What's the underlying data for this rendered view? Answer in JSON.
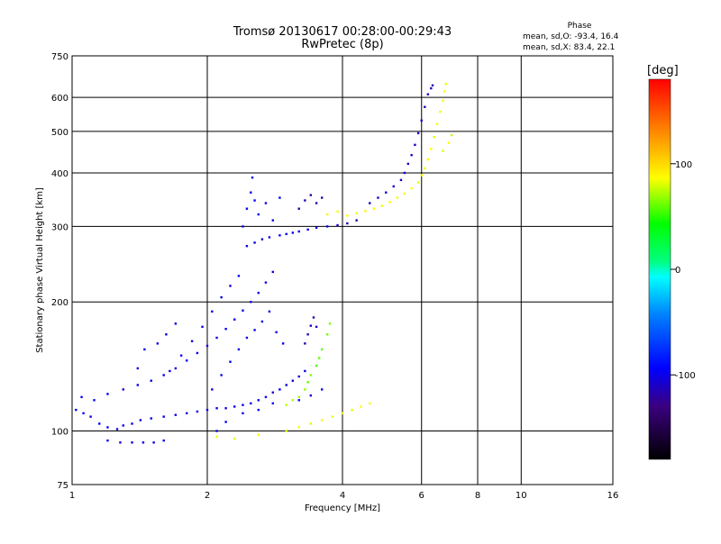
{
  "chart_data": {
    "type": "scatter",
    "title": "Tromsø 20130617 00:28:00-00:29:43",
    "subtitle": "RwPretec (8p)",
    "xlabel": "Frequency [MHz]",
    "ylabel": "Stationary phase Virtual Height [km]",
    "x_scale": "log",
    "y_scale": "log",
    "xlim": [
      1,
      16
    ],
    "ylim": [
      75,
      750
    ],
    "x_ticks": [
      {
        "value": 1,
        "label": "1"
      },
      {
        "value": 2,
        "label": "2"
      },
      {
        "value": 4,
        "label": "4"
      },
      {
        "value": 6,
        "label": "6"
      },
      {
        "value": 8,
        "label": "8"
      },
      {
        "value": 10,
        "label": "10"
      },
      {
        "value": 16,
        "label": "16"
      }
    ],
    "y_ticks": [
      {
        "value": 75,
        "label": "75"
      },
      {
        "value": 100,
        "label": "100"
      },
      {
        "value": 200,
        "label": "200"
      },
      {
        "value": 300,
        "label": "300"
      },
      {
        "value": 400,
        "label": "400"
      },
      {
        "value": 500,
        "label": "500"
      },
      {
        "value": 600,
        "label": "600"
      },
      {
        "value": 750,
        "label": "750"
      }
    ],
    "grid": true,
    "phase_info": {
      "header": "Phase",
      "line_o": "mean, sd,O: -93.4, 16.4",
      "line_x": "mean, sd,X: 83.4, 22.1"
    },
    "colorbar": {
      "label": "[deg]",
      "range": [
        -180,
        180
      ],
      "ticks": [
        {
          "value": 100,
          "label": "100"
        },
        {
          "value": 0,
          "label": "0"
        },
        {
          "value": -100,
          "label": "-100"
        }
      ]
    },
    "series": [
      {
        "mode": "O",
        "points": [
          [
            1.02,
            112,
            -100
          ],
          [
            1.06,
            110,
            -95
          ],
          [
            1.1,
            108,
            -105
          ],
          [
            1.15,
            104,
            -98
          ],
          [
            1.2,
            102,
            -100
          ],
          [
            1.26,
            101,
            -102
          ],
          [
            1.3,
            103,
            -96
          ],
          [
            1.36,
            104,
            -100
          ],
          [
            1.42,
            106,
            -104
          ],
          [
            1.5,
            107,
            -98
          ],
          [
            1.6,
            108,
            -100
          ],
          [
            1.7,
            109,
            -95
          ],
          [
            1.8,
            110,
            -103
          ],
          [
            1.9,
            111,
            -100
          ],
          [
            2.0,
            112,
            -98
          ],
          [
            2.1,
            113,
            -100
          ],
          [
            2.2,
            113,
            -104
          ],
          [
            2.3,
            114,
            -96
          ],
          [
            2.4,
            115,
            -100
          ],
          [
            2.5,
            116,
            -102
          ],
          [
            2.6,
            118,
            -98
          ],
          [
            2.7,
            120,
            -100
          ],
          [
            2.8,
            123,
            -105
          ],
          [
            2.9,
            125,
            -96
          ],
          [
            3.0,
            128,
            -100
          ],
          [
            3.1,
            131,
            -98
          ],
          [
            3.2,
            134,
            -102
          ],
          [
            3.3,
            138,
            -100
          ],
          [
            1.2,
            95,
            -100
          ],
          [
            1.28,
            94,
            -103
          ],
          [
            1.36,
            94,
            -100
          ],
          [
            1.44,
            94,
            -98
          ],
          [
            1.52,
            94,
            -102
          ],
          [
            1.6,
            95,
            -100
          ],
          [
            1.05,
            120,
            -100
          ],
          [
            1.12,
            118,
            -96
          ],
          [
            1.2,
            122,
            -100
          ],
          [
            1.3,
            125,
            -104
          ],
          [
            1.4,
            128,
            -100
          ],
          [
            1.5,
            131,
            -98
          ],
          [
            1.6,
            135,
            -100
          ],
          [
            1.7,
            140,
            -102
          ],
          [
            1.8,
            146,
            -100
          ],
          [
            1.9,
            152,
            -98
          ],
          [
            2.0,
            158,
            -100
          ],
          [
            2.1,
            165,
            -103
          ],
          [
            2.2,
            173,
            -100
          ],
          [
            2.3,
            182,
            -97
          ],
          [
            2.4,
            191,
            -100
          ],
          [
            2.5,
            200,
            -102
          ],
          [
            2.6,
            210,
            -100
          ],
          [
            2.7,
            222,
            -98
          ],
          [
            2.8,
            235,
            -100
          ],
          [
            2.05,
            125,
            -102
          ],
          [
            2.15,
            135,
            -100
          ],
          [
            2.25,
            145,
            -96
          ],
          [
            2.35,
            155,
            -100
          ],
          [
            2.45,
            165,
            -104
          ],
          [
            2.55,
            172,
            -100
          ],
          [
            2.65,
            180,
            -98
          ],
          [
            2.75,
            190,
            -100
          ],
          [
            2.85,
            170,
            -102
          ],
          [
            2.95,
            160,
            -100
          ],
          [
            2.1,
            100,
            -100
          ],
          [
            2.2,
            105,
            -98
          ],
          [
            2.4,
            110,
            -102
          ],
          [
            2.6,
            112,
            -100
          ],
          [
            2.8,
            116,
            -96
          ],
          [
            3.2,
            118,
            -100
          ],
          [
            3.4,
            121,
            -104
          ],
          [
            3.6,
            125,
            -100
          ],
          [
            1.65,
            138,
            -100
          ],
          [
            1.75,
            150,
            -98
          ],
          [
            1.85,
            162,
            -102
          ],
          [
            1.95,
            175,
            -100
          ],
          [
            2.05,
            190,
            -97
          ],
          [
            2.15,
            205,
            -100
          ],
          [
            2.25,
            218,
            -103
          ],
          [
            2.35,
            230,
            -100
          ],
          [
            1.4,
            140,
            -100
          ],
          [
            1.45,
            155,
            -98
          ],
          [
            1.55,
            160,
            -102
          ],
          [
            1.62,
            168,
            -100
          ],
          [
            1.7,
            178,
            -96
          ],
          [
            3.3,
            160,
            -115
          ],
          [
            3.35,
            168,
            -118
          ],
          [
            3.4,
            176,
            -110
          ],
          [
            3.45,
            184,
            -116
          ],
          [
            3.5,
            175,
            -112
          ],
          [
            2.45,
            270,
            -100
          ],
          [
            2.55,
            275,
            -98
          ],
          [
            2.65,
            280,
            -102
          ],
          [
            2.75,
            283,
            -100
          ],
          [
            2.9,
            286,
            -98
          ],
          [
            3.0,
            288,
            -102
          ],
          [
            3.1,
            290,
            -100
          ],
          [
            3.2,
            292,
            -104
          ],
          [
            3.35,
            295,
            -100
          ],
          [
            3.5,
            298,
            -98
          ],
          [
            3.7,
            300,
            -100
          ],
          [
            3.9,
            302,
            -110
          ],
          [
            4.1,
            305,
            -115
          ],
          [
            4.3,
            310,
            -120
          ],
          [
            2.4,
            300,
            -100
          ],
          [
            2.45,
            330,
            -98
          ],
          [
            2.5,
            360,
            -102
          ],
          [
            2.52,
            390,
            -100
          ],
          [
            2.55,
            345,
            -96
          ],
          [
            2.6,
            320,
            -100
          ],
          [
            2.7,
            340,
            -102
          ],
          [
            2.8,
            310,
            -100
          ],
          [
            2.9,
            350,
            -98
          ],
          [
            3.2,
            330,
            -120
          ],
          [
            3.3,
            345,
            -118
          ],
          [
            3.4,
            355,
            -122
          ],
          [
            3.5,
            340,
            -120
          ],
          [
            3.6,
            350,
            -116
          ],
          [
            4.6,
            340,
            -110
          ],
          [
            4.8,
            350,
            -112
          ],
          [
            5.0,
            360,
            -108
          ],
          [
            5.2,
            372,
            -110
          ],
          [
            5.4,
            385,
            -112
          ],
          [
            5.5,
            400,
            -106
          ],
          [
            5.6,
            420,
            -110
          ],
          [
            5.7,
            440,
            -114
          ],
          [
            5.8,
            465,
            -110
          ],
          [
            5.9,
            495,
            -108
          ],
          [
            6.0,
            530,
            -110
          ],
          [
            6.1,
            570,
            -112
          ],
          [
            6.2,
            610,
            -108
          ],
          [
            6.3,
            630,
            -110
          ],
          [
            6.35,
            640,
            -114
          ]
        ]
      },
      {
        "mode": "X",
        "points": [
          [
            2.1,
            97,
            85
          ],
          [
            2.3,
            96,
            80
          ],
          [
            2.6,
            98,
            90
          ],
          [
            3.0,
            100,
            78
          ],
          [
            3.2,
            102,
            85
          ],
          [
            3.4,
            104,
            80
          ],
          [
            3.6,
            106,
            88
          ],
          [
            3.8,
            108,
            82
          ],
          [
            4.0,
            110,
            85
          ],
          [
            4.2,
            112,
            80
          ],
          [
            4.4,
            114,
            86
          ],
          [
            4.6,
            116,
            84
          ],
          [
            3.2,
            120,
            70
          ],
          [
            3.35,
            130,
            60
          ],
          [
            3.5,
            142,
            55
          ],
          [
            3.6,
            155,
            58
          ],
          [
            3.7,
            168,
            62
          ],
          [
            3.75,
            178,
            65
          ],
          [
            3.0,
            115,
            75
          ],
          [
            3.1,
            118,
            72
          ],
          [
            3.3,
            125,
            68
          ],
          [
            3.4,
            135,
            64
          ],
          [
            3.55,
            148,
            60
          ],
          [
            3.7,
            320,
            90
          ],
          [
            3.9,
            325,
            85
          ],
          [
            4.1,
            318,
            88
          ],
          [
            4.3,
            322,
            84
          ],
          [
            4.5,
            326,
            90
          ],
          [
            4.7,
            330,
            86
          ],
          [
            4.9,
            335,
            82
          ],
          [
            5.1,
            342,
            88
          ],
          [
            5.3,
            350,
            84
          ],
          [
            5.5,
            358,
            90
          ],
          [
            5.7,
            368,
            86
          ],
          [
            5.9,
            380,
            82
          ],
          [
            6.0,
            395,
            88
          ],
          [
            6.1,
            410,
            84
          ],
          [
            6.2,
            430,
            90
          ],
          [
            6.3,
            455,
            86
          ],
          [
            6.4,
            485,
            82
          ],
          [
            6.5,
            520,
            88
          ],
          [
            6.6,
            555,
            84
          ],
          [
            6.7,
            590,
            90
          ],
          [
            6.75,
            620,
            86
          ],
          [
            6.8,
            645,
            82
          ],
          [
            6.7,
            450,
            80
          ],
          [
            6.9,
            470,
            85
          ],
          [
            7.0,
            490,
            75
          ]
        ]
      }
    ]
  }
}
